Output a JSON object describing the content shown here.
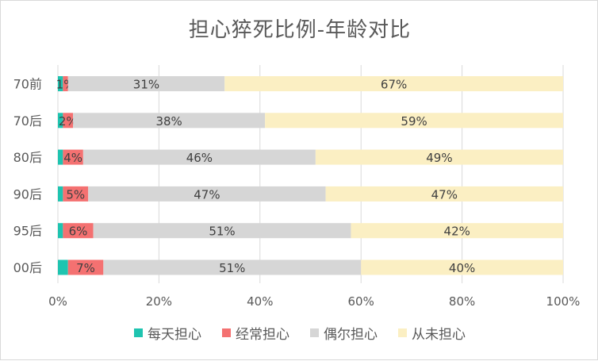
{
  "chart_data": {
    "type": "bar",
    "orientation": "horizontal",
    "stacked": "percent",
    "title": "担心猝死比例-年龄对比",
    "categories": [
      "70前",
      "70后",
      "80后",
      "90后",
      "95后",
      "00后"
    ],
    "series": [
      {
        "name": "每天担心",
        "color": "#1fc4b0",
        "values": [
          1,
          1,
          1,
          1,
          1,
          2
        ],
        "labels": [
          "",
          "",
          "",
          "",
          "",
          ""
        ]
      },
      {
        "name": "经常担心",
        "color": "#f47171",
        "values": [
          1,
          2,
          4,
          5,
          6,
          7
        ],
        "labels": [
          "1%",
          "2%",
          "4%",
          "5%",
          "6%",
          "7%"
        ]
      },
      {
        "name": "偶尔担心",
        "color": "#d6d6d6",
        "values": [
          31,
          38,
          46,
          47,
          51,
          51
        ],
        "labels": [
          "31%",
          "38%",
          "46%",
          "47%",
          "51%",
          "51%"
        ]
      },
      {
        "name": "从未担心",
        "color": "#fbefc3",
        "values": [
          67,
          59,
          49,
          47,
          42,
          40
        ],
        "labels": [
          "67%",
          "59%",
          "49%",
          "47%",
          "42%",
          "40%"
        ]
      }
    ],
    "xlim": [
      0,
      100
    ],
    "xticks": [
      "0%",
      "20%",
      "40%",
      "60%",
      "80%",
      "100%"
    ],
    "grid": "vertical",
    "legend_position": "bottom"
  }
}
